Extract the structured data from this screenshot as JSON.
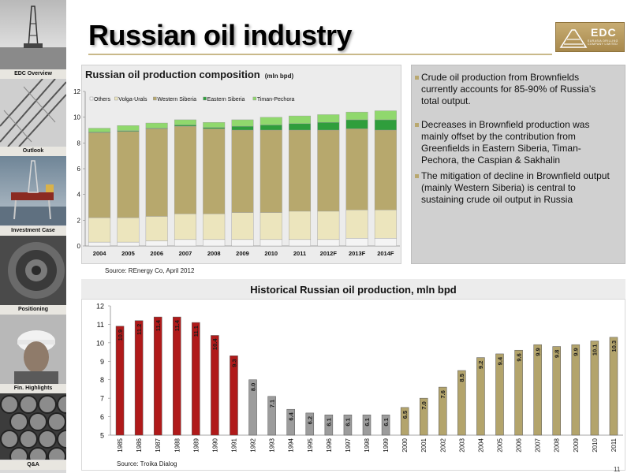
{
  "header": {
    "title": "Russian oil industry",
    "logo_text": "EDC",
    "logo_subtext": "EURASIA DRILLING COMPANY LIMITED"
  },
  "nav": {
    "items": [
      {
        "label": "EDC Overview"
      },
      {
        "label": "Outlook"
      },
      {
        "label": "Investment Case"
      },
      {
        "label": "Positioning"
      },
      {
        "label": "Fin. Highlights"
      },
      {
        "label": "Q&A"
      }
    ]
  },
  "top_chart": {
    "title": "Russian oil production composition",
    "unit": "(mln bpd)",
    "source": "Source: REnergy Co, April 2012"
  },
  "bullets": [
    {
      "text": "Crude oil production from Brownfields currently accounts for 85-90% of Russia’s total output."
    },
    {
      "text": "Decreases in Brownfield production was mainly offset by the contribution from Greenfields in Eastern Siberia, Timan-Pechora, the Caspian & Sakhalin"
    },
    {
      "text": "The mitigation of decline in Brownfield output (mainly Western Siberia) is central to sustaining crude oil output in Russia"
    }
  ],
  "bottom_chart": {
    "title": "Historical Russian oil production, mln bpd",
    "source": "Source: Troika Dialog"
  },
  "page_number": "11",
  "colors": {
    "others": "#f4f4f4",
    "volga_urals": "#ece5bd",
    "western_siberia": "#b7a86d",
    "eastern_siberia": "#2f9e3c",
    "timan_pechora": "#90d86d",
    "soviet_red": "#b01a1a",
    "transition_gray": "#9c9c9c",
    "growth_gold": "#b3a46c"
  },
  "chart_data": [
    {
      "type": "bar",
      "stacked": true,
      "categories": [
        "2004",
        "2005",
        "2006",
        "2007",
        "2008",
        "2009",
        "2010",
        "2011",
        "2012F",
        "2013F",
        "2014F"
      ],
      "series": [
        {
          "name": "Others",
          "values": [
            0.3,
            0.3,
            0.4,
            0.5,
            0.5,
            0.5,
            0.5,
            0.5,
            0.5,
            0.6,
            0.6
          ]
        },
        {
          "name": "Volga-Urals",
          "values": [
            1.9,
            1.9,
            1.9,
            2.0,
            2.0,
            2.1,
            2.1,
            2.2,
            2.2,
            2.2,
            2.2
          ]
        },
        {
          "name": "Western Siberia",
          "values": [
            6.6,
            6.7,
            6.8,
            6.8,
            6.6,
            6.4,
            6.4,
            6.3,
            6.3,
            6.3,
            6.2
          ]
        },
        {
          "name": "Eastern Siberia",
          "values": [
            0.05,
            0.05,
            0.05,
            0.1,
            0.1,
            0.3,
            0.4,
            0.5,
            0.6,
            0.7,
            0.8
          ]
        },
        {
          "name": "Timan-Pechora",
          "values": [
            0.3,
            0.4,
            0.4,
            0.4,
            0.4,
            0.5,
            0.6,
            0.6,
            0.6,
            0.6,
            0.7
          ]
        }
      ],
      "ylim": [
        0,
        12
      ],
      "yticks": [
        0,
        2,
        4,
        6,
        8,
        10,
        12
      ],
      "legend": "top-left"
    },
    {
      "type": "bar",
      "categories": [
        "1985",
        "1986",
        "1987",
        "1988",
        "1989",
        "1990",
        "1991",
        "1992",
        "1993",
        "1994",
        "1995",
        "1996",
        "1997",
        "1998",
        "1999",
        "2000",
        "2001",
        "2002",
        "2003",
        "2004",
        "2005",
        "2006",
        "2007",
        "2008",
        "2009",
        "2010",
        "2011"
      ],
      "values": [
        10.9,
        11.2,
        11.4,
        11.4,
        11.1,
        10.4,
        9.3,
        8.0,
        7.1,
        6.4,
        6.2,
        6.1,
        6.1,
        6.1,
        6.1,
        6.5,
        7.0,
        7.6,
        8.5,
        9.2,
        9.4,
        9.6,
        9.9,
        9.8,
        9.9,
        10.1,
        10.3
      ],
      "labels": [
        "10.9",
        "11.2",
        "11.4",
        "11.4",
        "11.1",
        "10.4",
        "9.3",
        "8.0",
        "7.1",
        "6.4",
        "6.2",
        "6.1",
        "6.1",
        "6.1",
        "6.1",
        "6.5",
        "7.0",
        "7.6",
        "8.5",
        "9.2",
        "9.4",
        "9.6",
        "9.9",
        "9.8",
        "9.9",
        "10.1",
        "10.3"
      ],
      "ylim": [
        5,
        12
      ],
      "yticks": [
        5,
        6,
        7,
        8,
        9,
        10,
        11,
        12
      ]
    }
  ]
}
